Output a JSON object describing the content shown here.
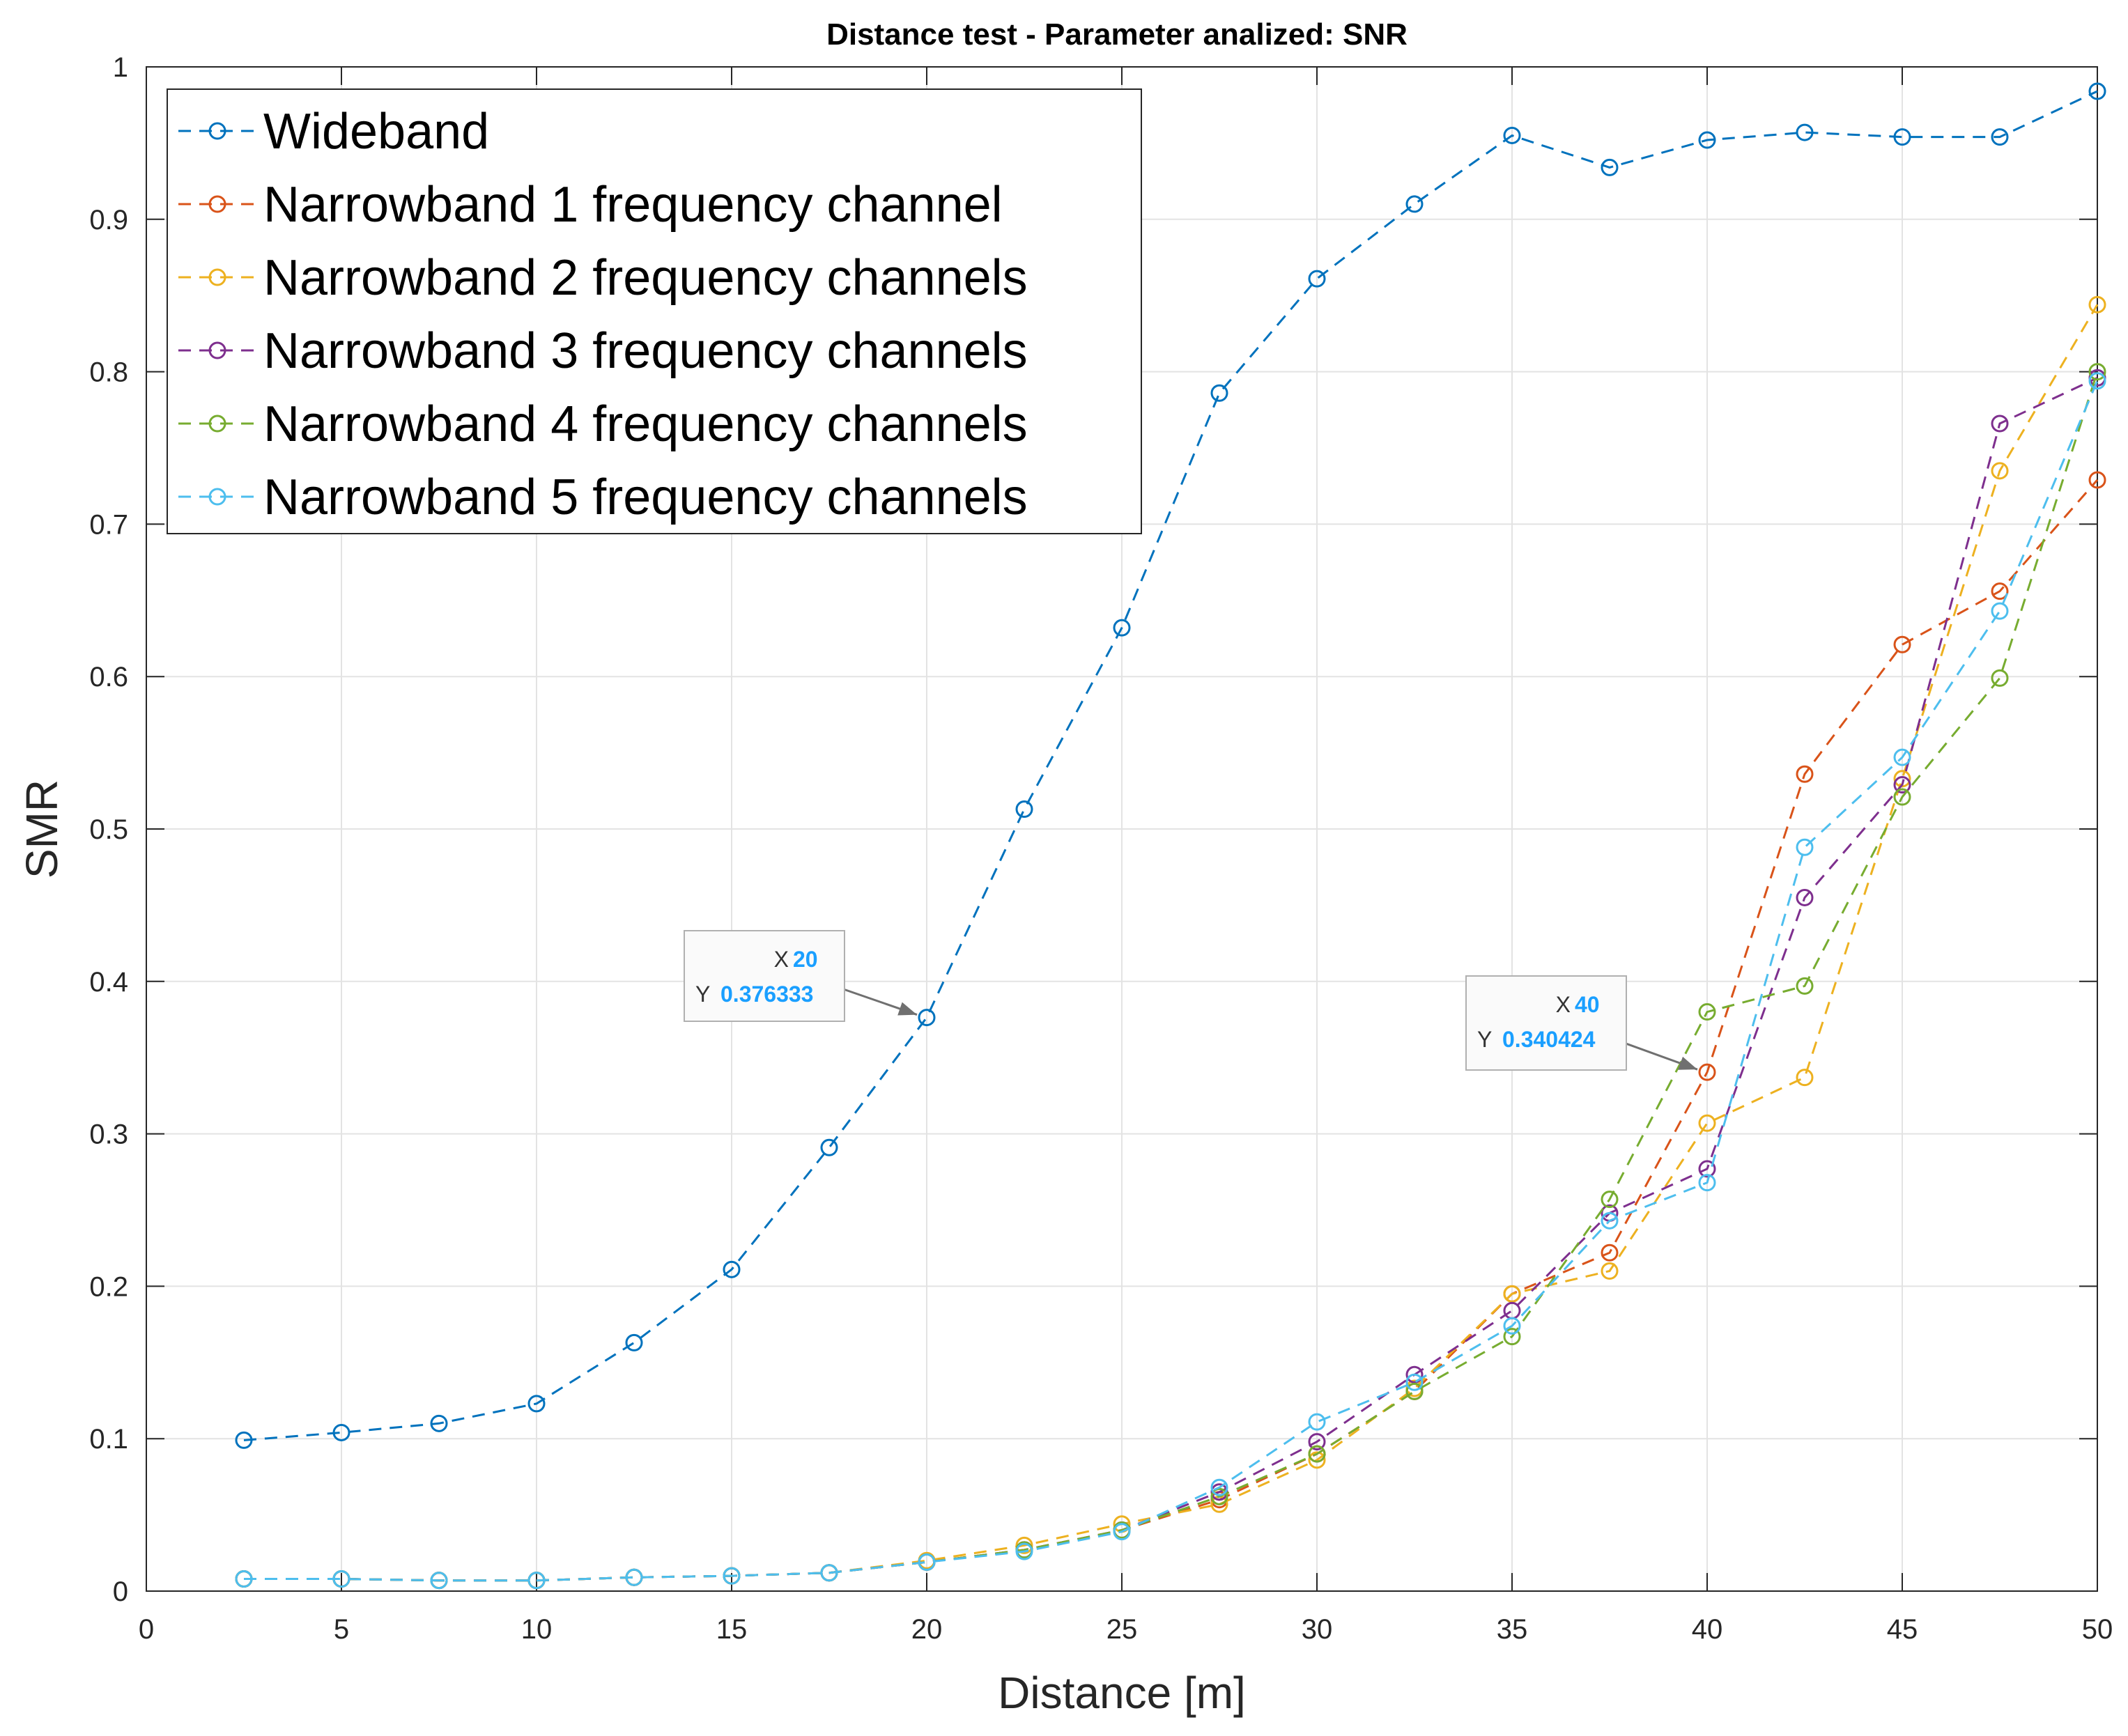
{
  "chart_data": {
    "type": "line",
    "title": "Distance test - Parameter analized: SNR",
    "xlabel": "Distance [m]",
    "ylabel": "SMR",
    "xlim": [
      0,
      50
    ],
    "ylim": [
      0,
      1
    ],
    "xticks": [
      "0",
      "5",
      "10",
      "15",
      "20",
      "25",
      "30",
      "35",
      "40",
      "45",
      "50"
    ],
    "yticks": [
      "0",
      "0.1",
      "0.2",
      "0.3",
      "0.4",
      "0.5",
      "0.6",
      "0.7",
      "0.8",
      "0.9",
      "1"
    ],
    "grid": true,
    "legend_position": "top-left",
    "line_style": "dashed",
    "marker": "circle",
    "x": [
      2.5,
      5,
      7.5,
      10,
      12.5,
      15,
      17.5,
      20,
      22.5,
      25,
      27.5,
      30,
      32.5,
      35,
      37.5,
      40,
      42.5,
      45,
      47.5,
      50
    ],
    "series": [
      {
        "name": "Wideband",
        "color": "#0072bd",
        "values": [
          0.099,
          0.104,
          0.11,
          0.123,
          0.163,
          0.211,
          0.291,
          0.376333,
          0.513,
          0.632,
          0.786,
          0.861,
          0.91,
          0.955,
          0.934,
          0.952,
          0.957,
          0.954,
          0.954,
          0.984
        ]
      },
      {
        "name": "Narrowband 1 frequency channel",
        "color": "#d95319",
        "values": [
          0.008,
          0.008,
          0.007,
          0.007,
          0.009,
          0.01,
          0.012,
          0.019,
          0.027,
          0.04,
          0.06,
          0.09,
          0.131,
          0.195,
          0.222,
          0.340424,
          0.536,
          0.621,
          0.656,
          0.729
        ]
      },
      {
        "name": "Narrowband 2 frequency channels",
        "color": "#edb120",
        "values": [
          0.008,
          0.008,
          0.007,
          0.007,
          0.009,
          0.01,
          0.012,
          0.02,
          0.03,
          0.044,
          0.057,
          0.086,
          0.133,
          0.195,
          0.21,
          0.307,
          0.337,
          0.533,
          0.735,
          0.844
        ]
      },
      {
        "name": "Narrowband 3 frequency channels",
        "color": "#7e2f8e",
        "values": [
          0.008,
          0.008,
          0.007,
          0.007,
          0.009,
          0.01,
          0.012,
          0.019,
          0.027,
          0.04,
          0.065,
          0.098,
          0.142,
          0.184,
          0.248,
          0.277,
          0.455,
          0.529,
          0.766,
          0.796
        ]
      },
      {
        "name": "Narrowband 4 frequency channels",
        "color": "#77ac30",
        "values": [
          0.008,
          0.008,
          0.007,
          0.007,
          0.009,
          0.01,
          0.012,
          0.019,
          0.027,
          0.04,
          0.062,
          0.09,
          0.131,
          0.167,
          0.257,
          0.38,
          0.397,
          0.521,
          0.599,
          0.8
        ]
      },
      {
        "name": "Narrowband 5 frequency channels",
        "color": "#4dbeee",
        "values": [
          0.008,
          0.008,
          0.007,
          0.007,
          0.009,
          0.01,
          0.012,
          0.019,
          0.026,
          0.039,
          0.068,
          0.111,
          0.137,
          0.174,
          0.243,
          0.268,
          0.488,
          0.547,
          0.643,
          0.794
        ]
      }
    ],
    "annotations": [
      {
        "x_label": "X",
        "x_value": "20",
        "y_label": "Y",
        "y_value": "0.376333",
        "x": 20,
        "y": 0.376333,
        "series": "Wideband"
      },
      {
        "x_label": "X",
        "x_value": "40",
        "y_label": "Y",
        "y_value": "0.340424",
        "x": 40,
        "y": 0.340424,
        "series": "Narrowband 1 frequency channel"
      }
    ]
  }
}
